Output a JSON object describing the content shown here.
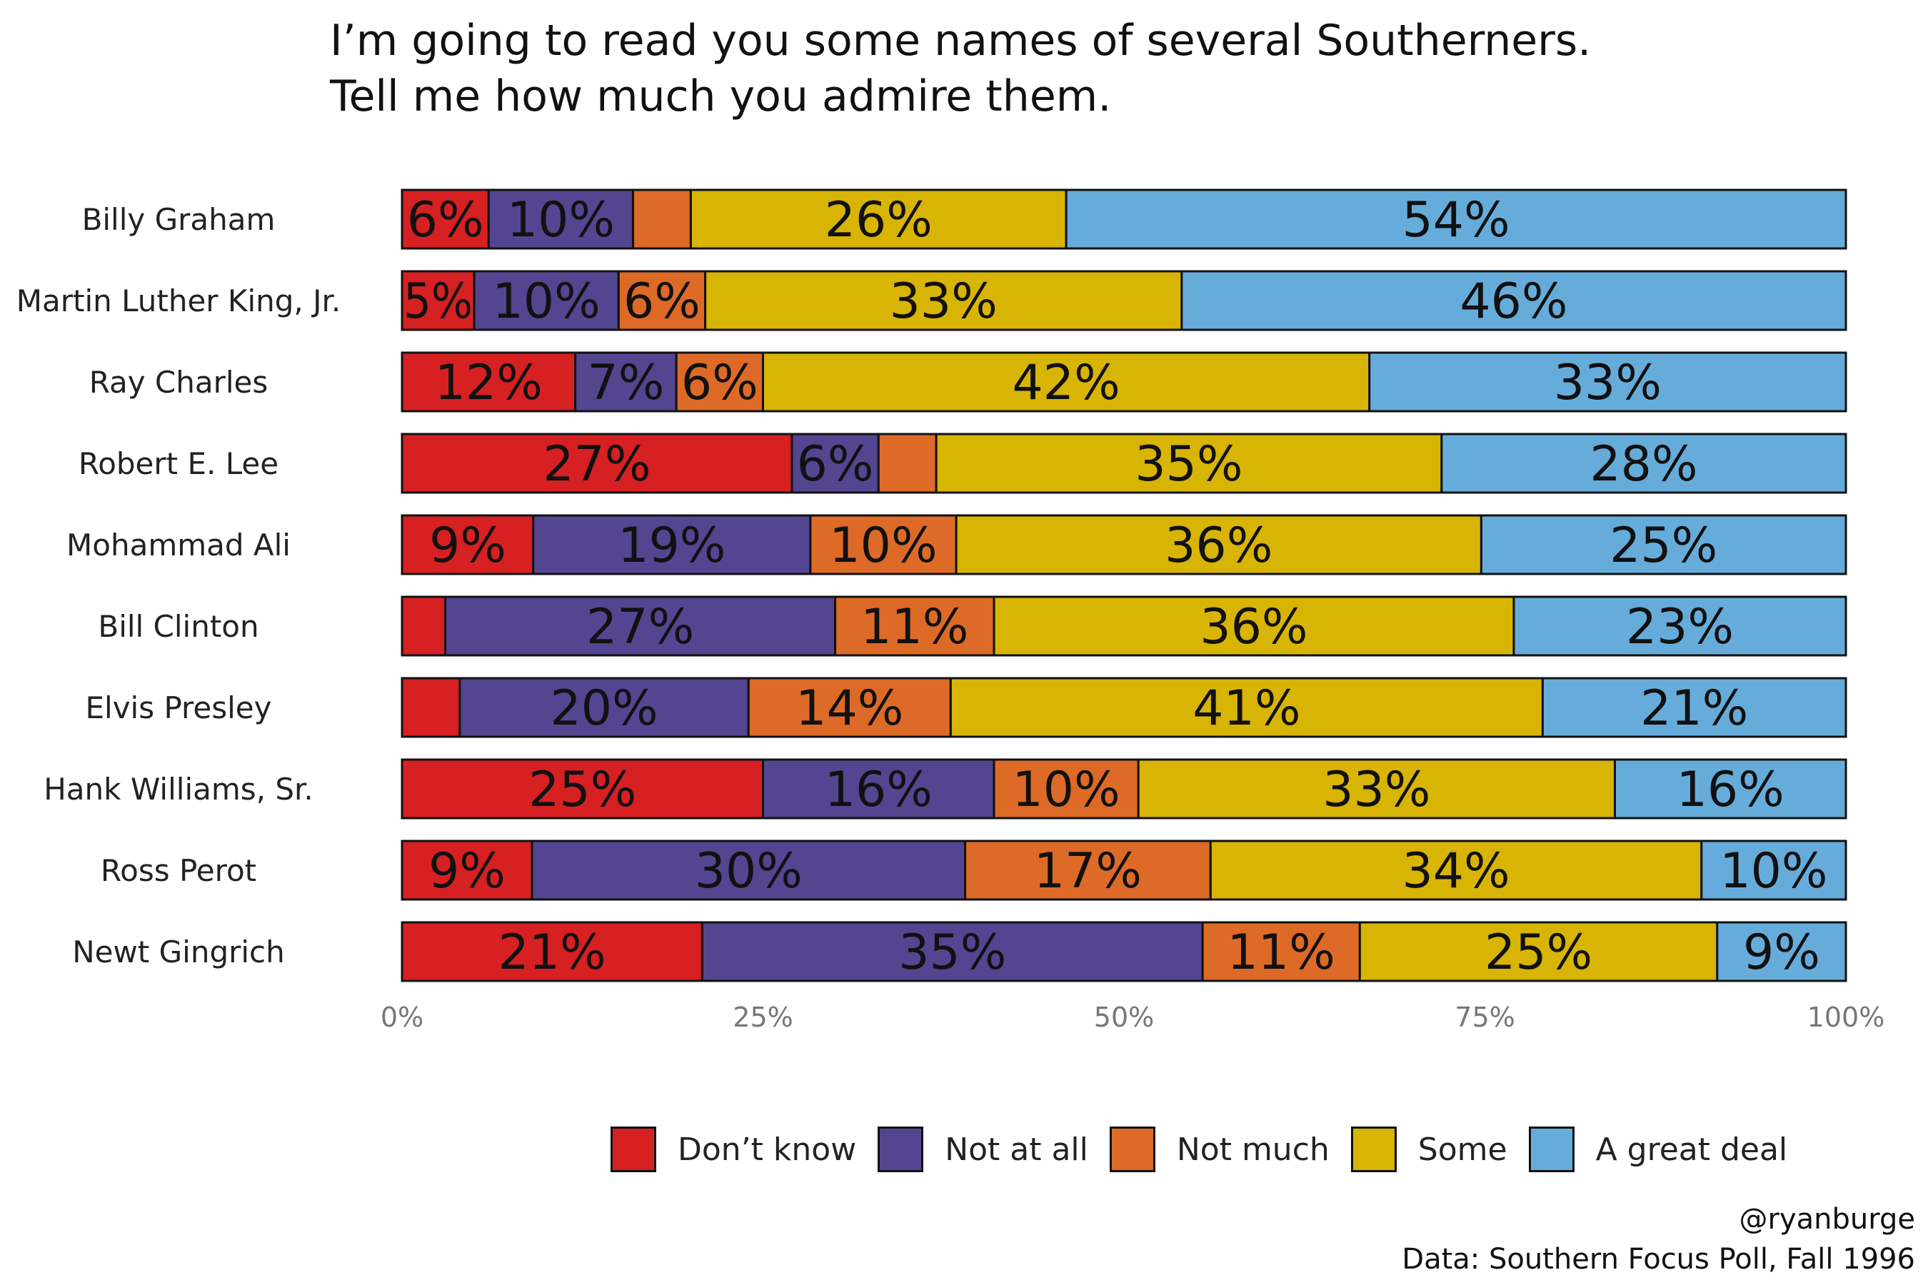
{
  "title_lines": [
    "I’m going to read you some names of several Southerners.",
    "Tell me how much you admire them."
  ],
  "caption": {
    "handle": "@ryanburge",
    "source": "Data: Southern Focus Poll, Fall 1996"
  },
  "colors": {
    "dont_know": "#d62022",
    "not_at_all": "#544591",
    "not_much": "#dd6a26",
    "some": "#d8b404",
    "great_deal": "#66acdb"
  },
  "chart_data": {
    "type": "bar",
    "orientation": "horizontal",
    "stacked": true,
    "title": "I’m going to read you some names of several Southerners. Tell me how much you admire them.",
    "xlabel": "",
    "ylabel": "",
    "xlim": [
      0,
      100
    ],
    "x_ticks": [
      "0%",
      "25%",
      "50%",
      "75%",
      "100%"
    ],
    "legend_position": "bottom",
    "categories": [
      "Billy Graham",
      "Martin Luther King, Jr.",
      "Ray Charles",
      "Robert E. Lee",
      "Mohammad Ali",
      "Bill Clinton",
      "Elvis Presley",
      "Hank Williams, Sr.",
      "Ross Perot",
      "Newt Gingrich"
    ],
    "series": [
      {
        "name": "Don’t know",
        "color_key": "dont_know",
        "values": [
          6,
          5,
          12,
          27,
          9,
          3,
          4,
          25,
          9,
          21
        ],
        "labels": [
          "6%",
          "5%",
          "12%",
          "27%",
          "9%",
          "",
          "",
          "25%",
          "9%",
          "21%"
        ]
      },
      {
        "name": "Not at all",
        "color_key": "not_at_all",
        "values": [
          10,
          10,
          7,
          6,
          19,
          27,
          20,
          16,
          30,
          35
        ],
        "labels": [
          "10%",
          "10%",
          "7%",
          "6%",
          "19%",
          "27%",
          "20%",
          "16%",
          "30%",
          "35%"
        ]
      },
      {
        "name": "Not much",
        "color_key": "not_much",
        "values": [
          4,
          6,
          6,
          4,
          10,
          11,
          14,
          10,
          17,
          11
        ],
        "labels": [
          "",
          "6%",
          "6%",
          "",
          "10%",
          "11%",
          "14%",
          "10%",
          "17%",
          "11%"
        ]
      },
      {
        "name": "Some",
        "color_key": "some",
        "values": [
          26,
          33,
          42,
          35,
          36,
          36,
          41,
          33,
          34,
          25
        ],
        "labels": [
          "26%",
          "33%",
          "42%",
          "35%",
          "36%",
          "36%",
          "41%",
          "33%",
          "34%",
          "25%"
        ]
      },
      {
        "name": "A great deal",
        "color_key": "great_deal",
        "values": [
          54,
          46,
          33,
          28,
          25,
          23,
          21,
          16,
          10,
          9
        ],
        "labels": [
          "54%",
          "46%",
          "33%",
          "28%",
          "25%",
          "23%",
          "21%",
          "16%",
          "10%",
          "9%"
        ]
      }
    ]
  }
}
